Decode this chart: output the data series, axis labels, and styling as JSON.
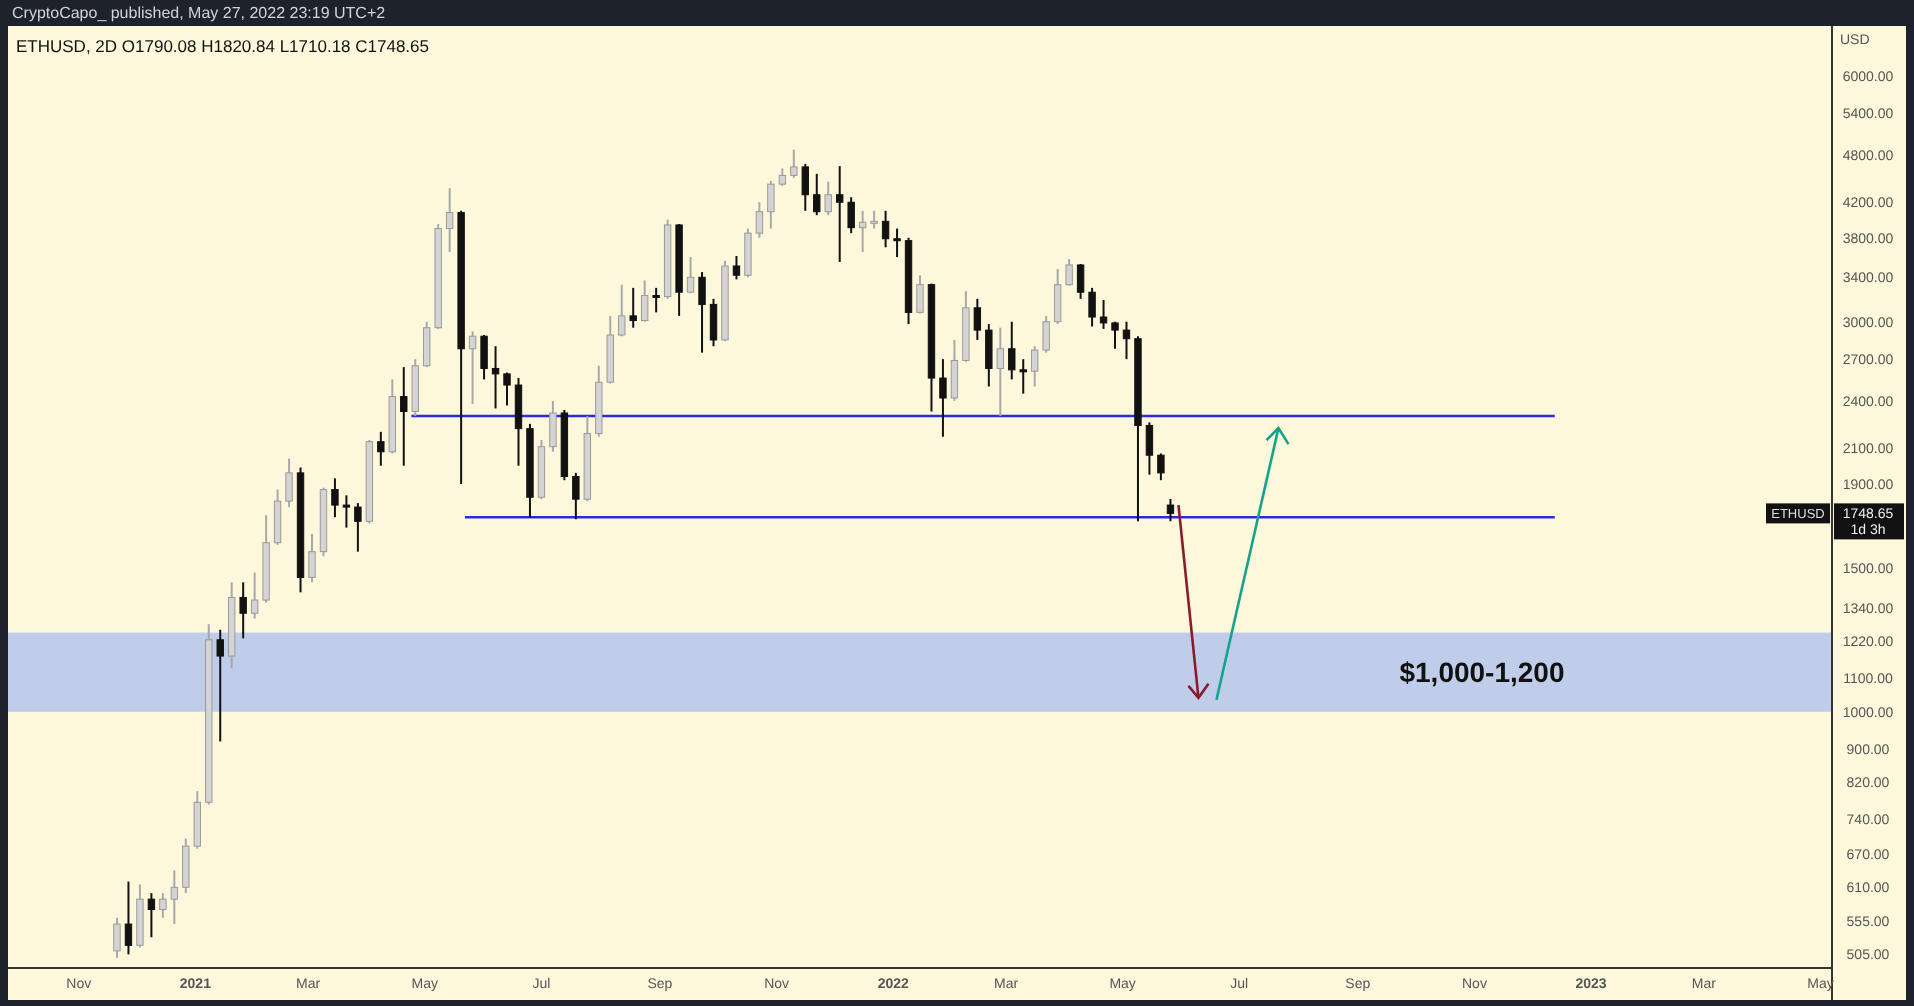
{
  "chart_data": {
    "type": "candlestick",
    "title": "ETHUSD, 2D  O1790.08  H1820.84  L1710.18  C1748.65",
    "subtitle": "CryptoCapo_ published, May 27, 2022 23:19 UTC+2",
    "ylabel": "USD",
    "annotations": [
      "ETHUSD",
      "1748.65",
      "1d 3h"
    ],
    "log": true,
    "xlim": [
      "2020-09-25",
      "2023-05-07"
    ],
    "ylim": [
      486,
      6900
    ],
    "xticks": [
      {
        "value": "2020-11-01",
        "label": "Nov"
      },
      {
        "value": "2021-01-01",
        "label": "2021"
      },
      {
        "value": "2021-03-01",
        "label": "Mar"
      },
      {
        "value": "2021-05-01",
        "label": "May"
      },
      {
        "value": "2021-07-01",
        "label": "Jul"
      },
      {
        "value": "2021-09-01",
        "label": "Sep"
      },
      {
        "value": "2021-11-01",
        "label": "Nov"
      },
      {
        "value": "2022-01-01",
        "label": "2022"
      },
      {
        "value": "2022-03-01",
        "label": "Mar"
      },
      {
        "value": "2022-05-01",
        "label": "May"
      },
      {
        "value": "2022-07-01",
        "label": "Jul"
      },
      {
        "value": "2022-09-01",
        "label": "Sep"
      },
      {
        "value": "2022-11-01",
        "label": "Nov"
      },
      {
        "value": "2023-01-01",
        "label": "2023"
      },
      {
        "value": "2023-03-01",
        "label": "Mar"
      },
      {
        "value": "2023-05-01",
        "label": "May"
      }
    ],
    "yticks": [
      {
        "value": 6000,
        "label": "6000.00"
      },
      {
        "value": 5400,
        "label": "5400.00"
      },
      {
        "value": 4800,
        "label": "4800.00"
      },
      {
        "value": 4200,
        "label": "4200.00"
      },
      {
        "value": 3800,
        "label": "3800.00"
      },
      {
        "value": 3400,
        "label": "3400.00"
      },
      {
        "value": 3000,
        "label": "3000.00"
      },
      {
        "value": 2700,
        "label": "2700.00"
      },
      {
        "value": 2400,
        "label": "2400.00"
      },
      {
        "value": 2100,
        "label": "2100.00"
      },
      {
        "value": 1900,
        "label": "1900.00"
      },
      {
        "value": 1500,
        "label": "1500.00"
      },
      {
        "value": 1340,
        "label": "1340.00"
      },
      {
        "value": 1220,
        "label": "1220.00"
      },
      {
        "value": 1100,
        "label": "1100.00"
      },
      {
        "value": 1000,
        "label": "1000.00"
      },
      {
        "value": 900,
        "label": "900.00"
      },
      {
        "value": 820,
        "label": "820.00"
      },
      {
        "value": 740,
        "label": "740.00"
      },
      {
        "value": 670,
        "label": "670.00"
      },
      {
        "value": 610,
        "label": "610.00"
      },
      {
        "value": 555,
        "label": "555.00"
      },
      {
        "value": 505,
        "label": "505.00"
      }
    ],
    "bands": [
      {
        "axis": "y",
        "from": 1000,
        "to": 1250,
        "label": "$1,000-1,200",
        "color": "#bfcdea"
      }
    ],
    "series": [
      {
        "type": "line",
        "x": [
          "2021-04-24",
          "2022-12-13"
        ],
        "values": [
          2300,
          2300
        ],
        "color": "#2a2ae0"
      },
      {
        "type": "line",
        "x": [
          "2021-05-22",
          "2022-12-13"
        ],
        "values": [
          1730,
          1730
        ],
        "color": "#2a2ae0"
      }
    ],
    "x": [
      "2020-11-21",
      "2020-11-27",
      "2020-12-03",
      "2020-12-09",
      "2020-12-15",
      "2020-12-21",
      "2020-12-27",
      "2021-01-02",
      "2021-01-08",
      "2021-01-14",
      "2021-01-20",
      "2021-01-26",
      "2021-02-01",
      "2021-02-07",
      "2021-02-13",
      "2021-02-19",
      "2021-02-25",
      "2021-03-03",
      "2021-03-09",
      "2021-03-15",
      "2021-03-21",
      "2021-03-27",
      "2021-04-02",
      "2021-04-08",
      "2021-04-14",
      "2021-04-20",
      "2021-04-26",
      "2021-05-02",
      "2021-05-08",
      "2021-05-14",
      "2021-05-20",
      "2021-05-26",
      "2021-06-01",
      "2021-06-07",
      "2021-06-13",
      "2021-06-19",
      "2021-06-25",
      "2021-07-01",
      "2021-07-07",
      "2021-07-13",
      "2021-07-19",
      "2021-07-25",
      "2021-07-31",
      "2021-08-06",
      "2021-08-12",
      "2021-08-18",
      "2021-08-24",
      "2021-08-30",
      "2021-09-05",
      "2021-09-11",
      "2021-09-17",
      "2021-09-23",
      "2021-09-29",
      "2021-10-05",
      "2021-10-11",
      "2021-10-17",
      "2021-10-23",
      "2021-10-29",
      "2021-11-04",
      "2021-11-10",
      "2021-11-16",
      "2021-11-22",
      "2021-11-28",
      "2021-12-04",
      "2021-12-10",
      "2021-12-16",
      "2021-12-22",
      "2021-12-28",
      "2022-01-03",
      "2022-01-09",
      "2022-01-15",
      "2022-01-21",
      "2022-01-27",
      "2022-02-02",
      "2022-02-08",
      "2022-02-14",
      "2022-02-20",
      "2022-02-26",
      "2022-03-04",
      "2022-03-10",
      "2022-03-16",
      "2022-03-22",
      "2022-03-28",
      "2022-04-03",
      "2022-04-09",
      "2022-04-15",
      "2022-04-21",
      "2022-04-27",
      "2022-05-03",
      "2022-05-09",
      "2022-05-15",
      "2022-05-21",
      "2022-05-26"
    ],
    "ohlc": [
      [
        510,
        560,
        500,
        550
      ],
      [
        550,
        620,
        505,
        518
      ],
      [
        518,
        615,
        515,
        590
      ],
      [
        590,
        600,
        530,
        573
      ],
      [
        573,
        600,
        560,
        590
      ],
      [
        590,
        640,
        550,
        610
      ],
      [
        610,
        700,
        600,
        685
      ],
      [
        685,
        800,
        680,
        775
      ],
      [
        775,
        1280,
        770,
        1225
      ],
      [
        1225,
        1260,
        920,
        1170
      ],
      [
        1170,
        1440,
        1130,
        1380
      ],
      [
        1380,
        1440,
        1230,
        1320
      ],
      [
        1320,
        1480,
        1300,
        1370
      ],
      [
        1370,
        1740,
        1360,
        1610
      ],
      [
        1610,
        1870,
        1600,
        1810
      ],
      [
        1810,
        2040,
        1780,
        1960
      ],
      [
        1960,
        1990,
        1400,
        1460
      ],
      [
        1460,
        1650,
        1440,
        1570
      ],
      [
        1570,
        1880,
        1550,
        1870
      ],
      [
        1870,
        1930,
        1730,
        1790
      ],
      [
        1790,
        1840,
        1680,
        1780
      ],
      [
        1780,
        1800,
        1570,
        1710
      ],
      [
        1710,
        2150,
        1700,
        2140
      ],
      [
        2140,
        2200,
        2000,
        2080
      ],
      [
        2080,
        2550,
        2070,
        2430
      ],
      [
        2430,
        2640,
        2000,
        2330
      ],
      [
        2330,
        2700,
        2300,
        2650
      ],
      [
        2650,
        3000,
        2640,
        2950
      ],
      [
        2950,
        3950,
        2940,
        3900
      ],
      [
        3900,
        4370,
        3650,
        4080
      ],
      [
        4080,
        4100,
        1900,
        2780
      ],
      [
        2780,
        2920,
        2380,
        2880
      ],
      [
        2880,
        2890,
        2550,
        2630
      ],
      [
        2630,
        2800,
        2350,
        2590
      ],
      [
        2590,
        2600,
        2370,
        2510
      ],
      [
        2510,
        2560,
        2000,
        2220
      ],
      [
        2220,
        2250,
        1730,
        1830
      ],
      [
        1830,
        2150,
        1820,
        2110
      ],
      [
        2110,
        2400,
        2080,
        2320
      ],
      [
        2320,
        2340,
        1920,
        1940
      ],
      [
        1940,
        1960,
        1720,
        1820
      ],
      [
        1820,
        2300,
        1810,
        2190
      ],
      [
        2190,
        2650,
        2170,
        2530
      ],
      [
        2530,
        3050,
        2520,
        2890
      ],
      [
        2890,
        3330,
        2880,
        3050
      ],
      [
        3050,
        3300,
        2950,
        3010
      ],
      [
        3010,
        3370,
        3000,
        3230
      ],
      [
        3230,
        3300,
        3080,
        3220
      ],
      [
        3220,
        4000,
        3200,
        3940
      ],
      [
        3940,
        3950,
        3050,
        3260
      ],
      [
        3260,
        3600,
        3250,
        3400
      ],
      [
        3400,
        3450,
        2750,
        3150
      ],
      [
        3150,
        3200,
        2800,
        2850
      ],
      [
        2850,
        3560,
        2840,
        3510
      ],
      [
        3510,
        3610,
        3380,
        3420
      ],
      [
        3420,
        3900,
        3400,
        3850
      ],
      [
        3850,
        4200,
        3800,
        4090
      ],
      [
        4090,
        4460,
        3900,
        4420
      ],
      [
        4420,
        4620,
        4400,
        4530
      ],
      [
        4530,
        4870,
        4500,
        4640
      ],
      [
        4640,
        4680,
        4100,
        4290
      ],
      [
        4290,
        4550,
        4050,
        4090
      ],
      [
        4090,
        4450,
        4050,
        4290
      ],
      [
        4290,
        4650,
        3550,
        4200
      ],
      [
        4200,
        4260,
        3850,
        3910
      ],
      [
        3910,
        4100,
        3650,
        3970
      ],
      [
        3970,
        4100,
        3900,
        3980
      ],
      [
        3980,
        4100,
        3700,
        3790
      ],
      [
        3790,
        3900,
        3600,
        3770
      ],
      [
        3770,
        3800,
        2980,
        3080
      ],
      [
        3080,
        3420,
        3070,
        3330
      ],
      [
        3330,
        3340,
        2330,
        2560
      ],
      [
        2560,
        2700,
        2170,
        2420
      ],
      [
        2420,
        2850,
        2400,
        2690
      ],
      [
        2690,
        3270,
        2680,
        3120
      ],
      [
        3120,
        3200,
        2850,
        2930
      ],
      [
        2930,
        2980,
        2500,
        2630
      ],
      [
        2630,
        2950,
        2300,
        2780
      ],
      [
        2780,
        3000,
        2550,
        2620
      ],
      [
        2620,
        2700,
        2450,
        2610
      ],
      [
        2610,
        2800,
        2500,
        2770
      ],
      [
        2770,
        3050,
        2750,
        3000
      ],
      [
        3000,
        3480,
        2980,
        3330
      ],
      [
        3330,
        3580,
        3320,
        3520
      ],
      [
        3520,
        3530,
        3200,
        3260
      ],
      [
        3260,
        3300,
        2960,
        3040
      ],
      [
        3040,
        3190,
        2940,
        2990
      ],
      [
        2990,
        3000,
        2780,
        2930
      ],
      [
        2930,
        3000,
        2700,
        2860
      ],
      [
        2860,
        2880,
        1710,
        2240
      ],
      [
        2240,
        2260,
        1950,
        2060
      ],
      [
        2060,
        2070,
        1920,
        1960
      ],
      [
        1790.08,
        1820.84,
        1710.18,
        1748.65
      ]
    ]
  }
}
